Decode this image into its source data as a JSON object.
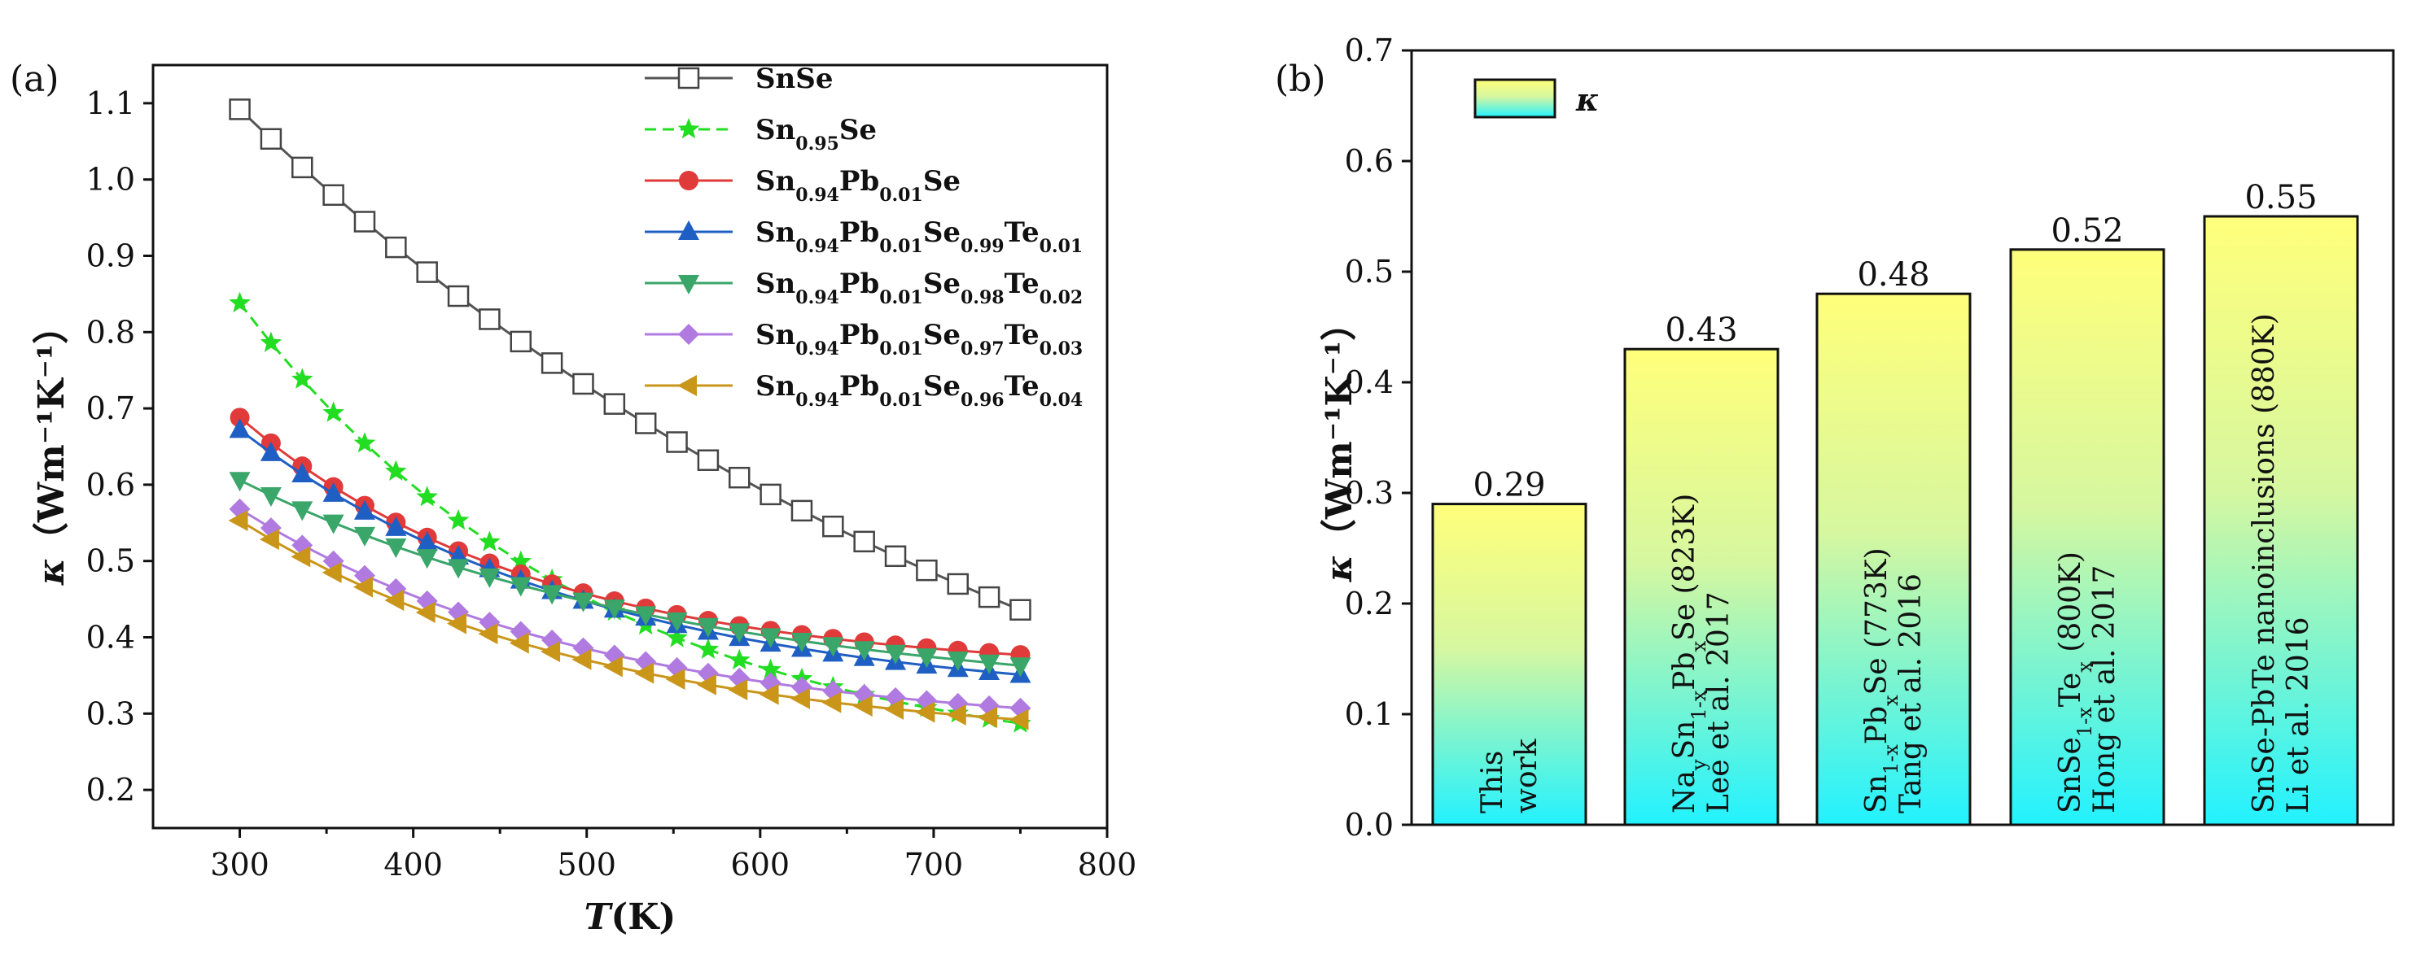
{
  "chart_data": [
    {
      "panel": "(a)",
      "type": "line",
      "xlabel_italic": "T",
      "xlabel_rest": "(K)",
      "ylabel_italic": "κ",
      "ylabel_rest": "（Wm⁻¹K⁻¹）",
      "xlim": [
        250,
        800
      ],
      "ylim": [
        0.15,
        1.15
      ],
      "xticks": [
        300,
        400,
        500,
        600,
        700,
        800
      ],
      "xtick_labels": [
        "300",
        "400",
        "500",
        "600",
        "700",
        "800"
      ],
      "yticks": [
        0.2,
        0.3,
        0.4,
        0.5,
        0.6,
        0.7,
        0.8,
        0.9,
        1.0,
        1.1
      ],
      "ytick_labels": [
        "0.2",
        "0.3",
        "0.4",
        "0.5",
        "0.6",
        "0.7",
        "0.8",
        "0.9",
        "1.0",
        "1.1"
      ],
      "legend_position": "top-right",
      "series": [
        {
          "name": "SnSe",
          "name_parts": [
            {
              "t": "SnSe"
            }
          ],
          "color": "#555555",
          "marker": "square-open",
          "dashed": false,
          "x_start": 300,
          "x_end": 750,
          "values": [
            1.092,
            0.436
          ],
          "curvature": 0.4
        },
        {
          "name": "Sn0.95Se",
          "name_parts": [
            {
              "t": "Sn"
            },
            {
              "s": "0.95"
            },
            {
              "t": "Se"
            }
          ],
          "color": "#22dd22",
          "marker": "star",
          "dashed": true,
          "x_start": 300,
          "x_end": 750,
          "values": [
            0.838,
            0.287
          ],
          "curvature": 1.0
        },
        {
          "name": "Sn0.94Pb0.01Se",
          "name_parts": [
            {
              "t": "Sn"
            },
            {
              "s": "0.94"
            },
            {
              "t": "Pb"
            },
            {
              "s": "0.01"
            },
            {
              "t": "Se"
            }
          ],
          "color": "#e03a3a",
          "marker": "circle",
          "dashed": false,
          "x_start": 300,
          "x_end": 750,
          "values": [
            0.688,
            0.377
          ],
          "curvature": 1.2
        },
        {
          "name": "Sn0.94Pb0.01Se0.99Te0.01",
          "name_parts": [
            {
              "t": "Sn"
            },
            {
              "s": "0.94"
            },
            {
              "t": "Pb"
            },
            {
              "s": "0.01"
            },
            {
              "t": "Se"
            },
            {
              "s": "0.99"
            },
            {
              "t": "Te"
            },
            {
              "s": "0.01"
            }
          ],
          "color": "#1f5fc4",
          "marker": "triangle-up",
          "dashed": false,
          "x_start": 300,
          "x_end": 750,
          "values": [
            0.672,
            0.351
          ],
          "curvature": 1.0
        },
        {
          "name": "Sn0.94Pb0.01Se0.98Te0.02",
          "name_parts": [
            {
              "t": "Sn"
            },
            {
              "s": "0.94"
            },
            {
              "t": "Pb"
            },
            {
              "s": "0.01"
            },
            {
              "t": "Se"
            },
            {
              "s": "0.98"
            },
            {
              "t": "Te"
            },
            {
              "s": "0.02"
            }
          ],
          "color": "#3aa66a",
          "marker": "triangle-down",
          "dashed": false,
          "x_start": 300,
          "x_end": 750,
          "values": [
            0.606,
            0.363
          ],
          "curvature": 0.8
        },
        {
          "name": "Sn0.94Pb0.01Se0.97Te0.03",
          "name_parts": [
            {
              "t": "Sn"
            },
            {
              "s": "0.94"
            },
            {
              "t": "Pb"
            },
            {
              "s": "0.01"
            },
            {
              "t": "Se"
            },
            {
              "s": "0.97"
            },
            {
              "t": "Te"
            },
            {
              "s": "0.03"
            }
          ],
          "color": "#b07ae0",
          "marker": "diamond",
          "dashed": false,
          "x_start": 300,
          "x_end": 750,
          "values": [
            0.568,
            0.307
          ],
          "curvature": 1.0
        },
        {
          "name": "Sn0.94Pb0.01Se0.96Te0.04",
          "name_parts": [
            {
              "t": "Sn"
            },
            {
              "s": "0.94"
            },
            {
              "t": "Pb"
            },
            {
              "s": "0.01"
            },
            {
              "t": "Se"
            },
            {
              "s": "0.96"
            },
            {
              "t": "Te"
            },
            {
              "s": "0.04"
            }
          ],
          "color": "#c9961a",
          "marker": "triangle-left",
          "dashed": false,
          "x_start": 300,
          "x_end": 750,
          "values": [
            0.553,
            0.292
          ],
          "curvature": 1.0
        }
      ]
    },
    {
      "panel": "(b)",
      "type": "bar",
      "ylabel_italic": "κ",
      "ylabel_rest": "（Wm⁻¹K⁻¹）",
      "ylim": [
        0.0,
        0.7
      ],
      "yticks": [
        0.0,
        0.1,
        0.2,
        0.3,
        0.4,
        0.5,
        0.6,
        0.7
      ],
      "ytick_labels": [
        "0.0",
        "0.1",
        "0.2",
        "0.3",
        "0.4",
        "0.5",
        "0.6",
        "0.7"
      ],
      "legend_label": "κ",
      "legend_position": "top-left",
      "gradient_colors": [
        "#ffff7a",
        "#22f2ff"
      ],
      "values": [
        0.29,
        0.43,
        0.48,
        0.52,
        0.55
      ],
      "value_labels": [
        "0.29",
        "0.43",
        "0.48",
        "0.52",
        "0.55"
      ],
      "categories": [
        "This work",
        "NaySn1-xPbxSe (823K) Lee et al. 2017",
        "Sn1-xPbxSe (773K) Tang et al. 2016",
        "SnSe1-xTex (800K) Hong et al. 2017",
        "SnSe-PbTe nanoinclusions (880K) Li et al. 2016"
      ],
      "category_lines": [
        [
          [
            {
              "t": "This"
            }
          ],
          [
            {
              "t": "work"
            }
          ]
        ],
        [
          [
            {
              "t": "Na"
            },
            {
              "s": "y"
            },
            {
              "t": "Sn"
            },
            {
              "s": "1-x"
            },
            {
              "t": "Pb"
            },
            {
              "s": "x"
            },
            {
              "t": "Se (823K)"
            }
          ],
          [
            {
              "t": "Lee et al. 2017"
            }
          ]
        ],
        [
          [
            {
              "t": "Sn"
            },
            {
              "s": "1-x"
            },
            {
              "t": "Pb"
            },
            {
              "s": "x"
            },
            {
              "t": "Se (773K)"
            }
          ],
          [
            {
              "t": "Tang et al. 2016"
            }
          ]
        ],
        [
          [
            {
              "t": "SnSe"
            },
            {
              "s": "1-x"
            },
            {
              "t": "Te"
            },
            {
              "s": "x"
            },
            {
              "t": " (800K)"
            }
          ],
          [
            {
              "t": "Hong et al. 2017"
            }
          ]
        ],
        [
          [
            {
              "t": "SnSe-PbTe nanoinclusions (880K)"
            }
          ],
          [
            {
              "t": "Li et al. 2016"
            }
          ]
        ]
      ]
    }
  ]
}
